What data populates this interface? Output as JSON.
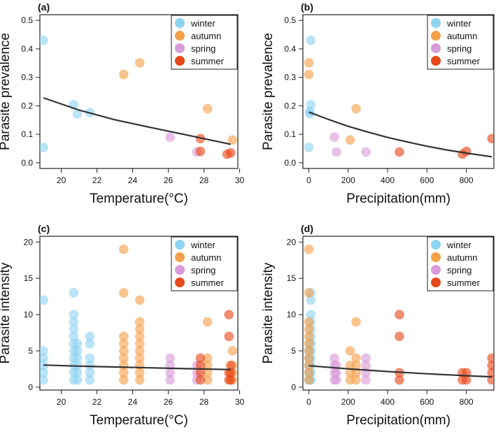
{
  "colors": {
    "winter": "#8fd3f2",
    "autumn": "#f5a04a",
    "spring": "#d99bd9",
    "summer": "#e8491a",
    "line": "#333333"
  },
  "legend": [
    {
      "key": "winter",
      "label": "winter"
    },
    {
      "key": "autumn",
      "label": "autumn"
    },
    {
      "key": "spring",
      "label": "spring"
    },
    {
      "key": "summer",
      "label": "summer"
    }
  ],
  "chart_data": [
    {
      "id": "a",
      "type": "scatter",
      "title": "(a)",
      "xlabel": "Temperature(°C)",
      "ylabel": "Parasite prevalence",
      "xlim": [
        18.8,
        29.9
      ],
      "ylim": [
        -0.02,
        0.52
      ],
      "xticks": [
        20,
        22,
        24,
        26,
        28,
        30
      ],
      "yticks": [
        0.0,
        0.1,
        0.2,
        0.3,
        0.4,
        0.5
      ],
      "ytick_labels": [
        "0.0",
        "0.1",
        "0.2",
        "0.3",
        "0.4",
        "0.5"
      ],
      "series": [
        {
          "name": "winter",
          "points": [
            [
              19.0,
              0.43
            ],
            [
              19.0,
              0.054
            ],
            [
              20.7,
              0.204
            ],
            [
              20.9,
              0.172
            ],
            [
              21.6,
              0.177
            ]
          ]
        },
        {
          "name": "autumn",
          "points": [
            [
              23.5,
              0.31
            ],
            [
              24.4,
              0.351
            ],
            [
              28.2,
              0.19
            ],
            [
              29.6,
              0.08
            ]
          ]
        },
        {
          "name": "spring",
          "points": [
            [
              26.1,
              0.09
            ],
            [
              27.6,
              0.038
            ]
          ]
        },
        {
          "name": "summer",
          "points": [
            [
              27.8,
              0.085
            ],
            [
              27.8,
              0.04
            ],
            [
              29.3,
              0.03
            ],
            [
              29.5,
              0.035
            ]
          ]
        }
      ],
      "fit": [
        [
          19.0,
          0.228
        ],
        [
          21.0,
          0.185
        ],
        [
          23.0,
          0.151
        ],
        [
          25.0,
          0.124
        ],
        [
          27.0,
          0.098
        ],
        [
          29.5,
          0.065
        ]
      ]
    },
    {
      "id": "b",
      "type": "scatter",
      "title": "(b)",
      "xlabel": "Precipitation(mm)",
      "ylabel": "Parasite prevalence",
      "xlim": [
        -30,
        940
      ],
      "ylim": [
        -0.02,
        0.52
      ],
      "xticks": [
        0,
        200,
        400,
        600,
        800
      ],
      "yticks": [
        0.0,
        0.1,
        0.2,
        0.3,
        0.4,
        0.5
      ],
      "ytick_labels": [
        "0.0",
        "0.1",
        "0.2",
        "0.3",
        "0.4",
        "0.5"
      ],
      "series": [
        {
          "name": "winter",
          "points": [
            [
              10,
              0.43
            ],
            [
              10,
              0.204
            ],
            [
              5,
              0.18
            ],
            [
              5,
              0.172
            ],
            [
              0,
              0.054
            ]
          ]
        },
        {
          "name": "autumn",
          "points": [
            [
              0,
              0.351
            ],
            [
              0,
              0.31
            ],
            [
              240,
              0.19
            ],
            [
              210,
              0.08
            ]
          ]
        },
        {
          "name": "spring",
          "points": [
            [
              130,
              0.09
            ],
            [
              140,
              0.038
            ],
            [
              290,
              0.038
            ]
          ]
        },
        {
          "name": "summer",
          "points": [
            [
              460,
              0.038
            ],
            [
              780,
              0.03
            ],
            [
              800,
              0.04
            ],
            [
              930,
              0.085
            ]
          ]
        }
      ],
      "fit": [
        [
          0,
          0.178
        ],
        [
          100,
          0.152
        ],
        [
          200,
          0.128
        ],
        [
          300,
          0.108
        ],
        [
          400,
          0.089
        ],
        [
          500,
          0.073
        ],
        [
          600,
          0.058
        ],
        [
          700,
          0.045
        ],
        [
          800,
          0.034
        ],
        [
          930,
          0.021
        ]
      ]
    },
    {
      "id": "c",
      "type": "scatter",
      "title": "(c)",
      "xlabel": "Temperature(°C)",
      "ylabel": "Parasite intensity",
      "xlim": [
        18.8,
        29.9
      ],
      "ylim": [
        -0.4,
        20.8
      ],
      "xticks": [
        20,
        22,
        24,
        26,
        28,
        30
      ],
      "yticks": [
        0,
        5,
        10,
        15,
        20
      ],
      "ytick_labels": [
        "0",
        "5",
        "10",
        "15",
        "20"
      ],
      "series": [
        {
          "name": "winter",
          "points": [
            [
              19.0,
              12
            ],
            [
              19.0,
              5
            ],
            [
              19.0,
              4
            ],
            [
              19.0,
              3
            ],
            [
              19.0,
              2
            ],
            [
              19.0,
              1
            ],
            [
              20.7,
              13
            ],
            [
              20.7,
              10
            ],
            [
              20.7,
              9
            ],
            [
              20.7,
              8
            ],
            [
              20.7,
              7
            ],
            [
              20.7,
              6
            ],
            [
              20.7,
              5
            ],
            [
              20.7,
              4
            ],
            [
              20.7,
              3
            ],
            [
              20.7,
              2
            ],
            [
              20.7,
              1
            ],
            [
              20.9,
              6
            ],
            [
              20.9,
              5
            ],
            [
              20.9,
              4
            ],
            [
              20.9,
              3
            ],
            [
              20.9,
              2
            ],
            [
              20.9,
              1
            ],
            [
              21.6,
              7
            ],
            [
              21.6,
              6
            ],
            [
              21.6,
              4
            ],
            [
              21.6,
              3
            ],
            [
              21.6,
              2
            ],
            [
              21.6,
              1
            ]
          ]
        },
        {
          "name": "autumn",
          "points": [
            [
              23.5,
              19
            ],
            [
              23.5,
              13
            ],
            [
              23.5,
              7
            ],
            [
              23.5,
              6
            ],
            [
              23.5,
              5
            ],
            [
              23.5,
              4
            ],
            [
              23.5,
              3
            ],
            [
              23.5,
              2
            ],
            [
              23.5,
              1
            ],
            [
              24.4,
              12
            ],
            [
              24.4,
              9
            ],
            [
              24.4,
              8
            ],
            [
              24.4,
              7
            ],
            [
              24.4,
              6
            ],
            [
              24.4,
              5
            ],
            [
              24.4,
              4
            ],
            [
              24.4,
              3
            ],
            [
              24.4,
              2
            ],
            [
              24.4,
              1
            ],
            [
              28.2,
              9
            ],
            [
              28.2,
              4
            ],
            [
              28.2,
              3
            ],
            [
              28.2,
              2
            ],
            [
              28.2,
              1
            ],
            [
              29.6,
              5
            ],
            [
              29.6,
              3
            ],
            [
              29.6,
              2
            ],
            [
              29.6,
              1
            ]
          ]
        },
        {
          "name": "spring",
          "points": [
            [
              26.1,
              4
            ],
            [
              26.1,
              3
            ],
            [
              26.1,
              2
            ],
            [
              26.1,
              1
            ],
            [
              27.6,
              3
            ],
            [
              27.6,
              2
            ],
            [
              27.6,
              1
            ]
          ]
        },
        {
          "name": "summer",
          "points": [
            [
              27.8,
              4
            ],
            [
              27.8,
              3
            ],
            [
              27.8,
              2
            ],
            [
              27.8,
              1
            ],
            [
              29.4,
              10
            ],
            [
              29.4,
              7
            ],
            [
              29.4,
              2
            ],
            [
              29.4,
              1
            ],
            [
              29.5,
              3
            ],
            [
              29.5,
              2
            ],
            [
              29.5,
              1
            ]
          ]
        }
      ],
      "fit": [
        [
          19.0,
          3.05
        ],
        [
          21.0,
          2.9
        ],
        [
          23.0,
          2.78
        ],
        [
          25.0,
          2.66
        ],
        [
          27.0,
          2.55
        ],
        [
          29.5,
          2.42
        ]
      ]
    },
    {
      "id": "d",
      "type": "scatter",
      "title": "(d)",
      "xlabel": "Precipitation(mm)",
      "ylabel": "Parasite intensity",
      "xlim": [
        -30,
        940
      ],
      "ylim": [
        -0.4,
        20.8
      ],
      "xticks": [
        0,
        200,
        400,
        600,
        800
      ],
      "yticks": [
        0,
        5,
        10,
        15,
        20
      ],
      "ytick_labels": [
        "0",
        "5",
        "10",
        "15",
        "20"
      ],
      "series": [
        {
          "name": "winter",
          "points": [
            [
              10,
              13
            ],
            [
              10,
              12
            ],
            [
              10,
              10
            ],
            [
              10,
              9
            ],
            [
              10,
              8
            ],
            [
              10,
              7
            ],
            [
              10,
              6
            ],
            [
              10,
              5
            ],
            [
              10,
              4
            ],
            [
              10,
              3
            ],
            [
              10,
              2
            ],
            [
              10,
              1
            ],
            [
              5,
              6
            ],
            [
              5,
              5
            ],
            [
              5,
              4
            ],
            [
              5,
              3
            ],
            [
              5,
              2
            ],
            [
              5,
              1
            ],
            [
              0,
              5
            ],
            [
              0,
              4
            ],
            [
              0,
              3
            ],
            [
              0,
              2
            ],
            [
              0,
              1
            ]
          ]
        },
        {
          "name": "autumn",
          "points": [
            [
              0,
              19
            ],
            [
              0,
              13
            ],
            [
              0,
              9
            ],
            [
              0,
              8
            ],
            [
              0,
              7
            ],
            [
              0,
              6
            ],
            [
              0,
              5
            ],
            [
              0,
              4
            ],
            [
              0,
              3
            ],
            [
              0,
              2
            ],
            [
              0,
              1
            ],
            [
              240,
              9
            ],
            [
              240,
              4
            ],
            [
              240,
              3
            ],
            [
              240,
              2
            ],
            [
              240,
              1
            ],
            [
              210,
              5
            ],
            [
              210,
              3
            ],
            [
              210,
              2
            ],
            [
              210,
              1
            ]
          ]
        },
        {
          "name": "spring",
          "points": [
            [
              130,
              4
            ],
            [
              130,
              3
            ],
            [
              130,
              2
            ],
            [
              130,
              1
            ],
            [
              140,
              3
            ],
            [
              140,
              2
            ],
            [
              140,
              1
            ],
            [
              290,
              4
            ],
            [
              290,
              3
            ],
            [
              290,
              2
            ],
            [
              290,
              1
            ]
          ]
        },
        {
          "name": "summer",
          "points": [
            [
              460,
              10
            ],
            [
              460,
              7
            ],
            [
              460,
              2
            ],
            [
              460,
              1
            ],
            [
              780,
              2
            ],
            [
              780,
              1
            ],
            [
              800,
              2
            ],
            [
              800,
              1
            ],
            [
              930,
              4
            ],
            [
              930,
              3
            ],
            [
              930,
              2
            ],
            [
              930,
              1
            ]
          ]
        }
      ],
      "fit": [
        [
          0,
          2.95
        ],
        [
          200,
          2.52
        ],
        [
          400,
          2.15
        ],
        [
          600,
          1.85
        ],
        [
          800,
          1.58
        ],
        [
          930,
          1.42
        ]
      ]
    }
  ]
}
